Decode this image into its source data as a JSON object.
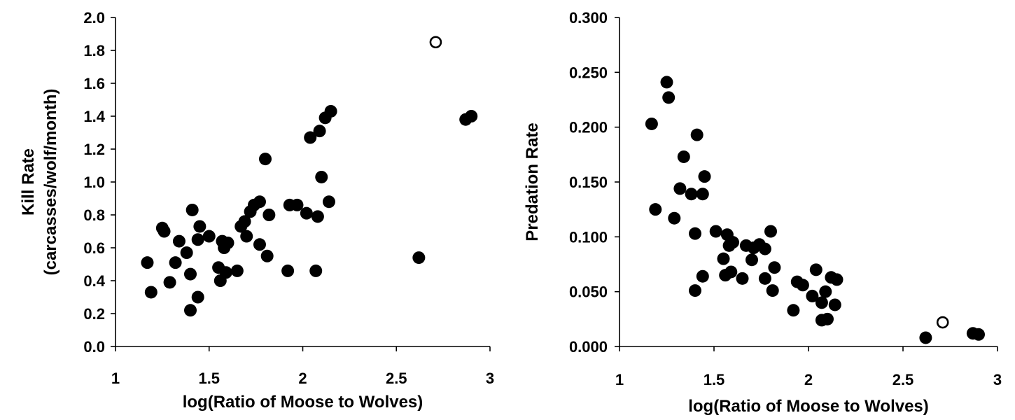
{
  "chart_data": [
    {
      "type": "scatter",
      "xlabel": "log(Ratio of Moose to Wolves)",
      "ylabel_lines": [
        "Kill Rate",
        "(carcasses/wolf/month)"
      ],
      "xlim": [
        1,
        3
      ],
      "ylim": [
        0,
        2.0
      ],
      "xticks": [
        "1",
        "1.5",
        "2",
        "2.5",
        "3"
      ],
      "yticks": [
        "0.0",
        "0.2",
        "0.4",
        "0.6",
        "0.8",
        "1.0",
        "1.2",
        "1.4",
        "1.6",
        "1.8",
        "2.0"
      ],
      "grid": false,
      "legend": "none",
      "colors": {
        "filled": "#000000",
        "open_fill": "#ffffff"
      },
      "series": [
        {
          "style": "filled",
          "points": [
            [
              1.17,
              0.51
            ],
            [
              1.19,
              0.33
            ],
            [
              1.25,
              0.72
            ],
            [
              1.26,
              0.7
            ],
            [
              1.29,
              0.39
            ],
            [
              1.32,
              0.51
            ],
            [
              1.34,
              0.64
            ],
            [
              1.38,
              0.57
            ],
            [
              1.4,
              0.44
            ],
            [
              1.4,
              0.22
            ],
            [
              1.41,
              0.83
            ],
            [
              1.44,
              0.3
            ],
            [
              1.44,
              0.65
            ],
            [
              1.45,
              0.73
            ],
            [
              1.5,
              0.67
            ],
            [
              1.55,
              0.48
            ],
            [
              1.56,
              0.4
            ],
            [
              1.57,
              0.64
            ],
            [
              1.58,
              0.6
            ],
            [
              1.59,
              0.45
            ],
            [
              1.6,
              0.63
            ],
            [
              1.65,
              0.46
            ],
            [
              1.67,
              0.73
            ],
            [
              1.69,
              0.76
            ],
            [
              1.7,
              0.67
            ],
            [
              1.72,
              0.82
            ],
            [
              1.74,
              0.86
            ],
            [
              1.77,
              0.88
            ],
            [
              1.77,
              0.62
            ],
            [
              1.8,
              1.14
            ],
            [
              1.81,
              0.55
            ],
            [
              1.82,
              0.8
            ],
            [
              1.92,
              0.46
            ],
            [
              1.93,
              0.86
            ],
            [
              1.97,
              0.86
            ],
            [
              2.02,
              0.81
            ],
            [
              2.04,
              1.27
            ],
            [
              2.07,
              0.46
            ],
            [
              2.08,
              0.79
            ],
            [
              2.09,
              1.31
            ],
            [
              2.1,
              1.03
            ],
            [
              2.12,
              1.39
            ],
            [
              2.14,
              0.88
            ],
            [
              2.15,
              1.43
            ],
            [
              2.62,
              0.54
            ],
            [
              2.87,
              1.38
            ],
            [
              2.9,
              1.4
            ]
          ]
        },
        {
          "style": "open",
          "points": [
            [
              2.71,
              1.85
            ]
          ]
        }
      ]
    },
    {
      "type": "scatter",
      "xlabel": "log(Ratio of Moose to Wolves)",
      "ylabel_lines": [
        "Predation Rate"
      ],
      "xlim": [
        1,
        3
      ],
      "ylim": [
        0,
        0.3
      ],
      "xticks": [
        "1",
        "1.5",
        "2",
        "2.5",
        "3"
      ],
      "yticks": [
        "0.000",
        "0.050",
        "0.100",
        "0.150",
        "0.200",
        "0.250",
        "0.300"
      ],
      "grid": false,
      "legend": "none",
      "colors": {
        "filled": "#000000",
        "open_fill": "#ffffff"
      },
      "series": [
        {
          "style": "filled",
          "points": [
            [
              1.17,
              0.203
            ],
            [
              1.19,
              0.125
            ],
            [
              1.25,
              0.241
            ],
            [
              1.26,
              0.227
            ],
            [
              1.29,
              0.117
            ],
            [
              1.32,
              0.144
            ],
            [
              1.34,
              0.173
            ],
            [
              1.38,
              0.139
            ],
            [
              1.4,
              0.051
            ],
            [
              1.4,
              0.103
            ],
            [
              1.41,
              0.193
            ],
            [
              1.44,
              0.064
            ],
            [
              1.44,
              0.139
            ],
            [
              1.45,
              0.155
            ],
            [
              1.51,
              0.105
            ],
            [
              1.55,
              0.08
            ],
            [
              1.56,
              0.065
            ],
            [
              1.57,
              0.102
            ],
            [
              1.58,
              0.092
            ],
            [
              1.59,
              0.068
            ],
            [
              1.6,
              0.095
            ],
            [
              1.65,
              0.062
            ],
            [
              1.67,
              0.092
            ],
            [
              1.7,
              0.079
            ],
            [
              1.71,
              0.09
            ],
            [
              1.74,
              0.093
            ],
            [
              1.77,
              0.062
            ],
            [
              1.77,
              0.089
            ],
            [
              1.8,
              0.105
            ],
            [
              1.81,
              0.051
            ],
            [
              1.82,
              0.072
            ],
            [
              1.92,
              0.033
            ],
            [
              1.94,
              0.059
            ],
            [
              1.97,
              0.056
            ],
            [
              2.02,
              0.046
            ],
            [
              2.04,
              0.07
            ],
            [
              2.07,
              0.024
            ],
            [
              2.07,
              0.04
            ],
            [
              2.09,
              0.05
            ],
            [
              2.1,
              0.025
            ],
            [
              2.12,
              0.063
            ],
            [
              2.14,
              0.038
            ],
            [
              2.15,
              0.061
            ],
            [
              2.62,
              0.008
            ],
            [
              2.87,
              0.012
            ],
            [
              2.9,
              0.011
            ]
          ]
        },
        {
          "style": "open",
          "points": [
            [
              2.71,
              0.022
            ]
          ]
        }
      ]
    }
  ]
}
